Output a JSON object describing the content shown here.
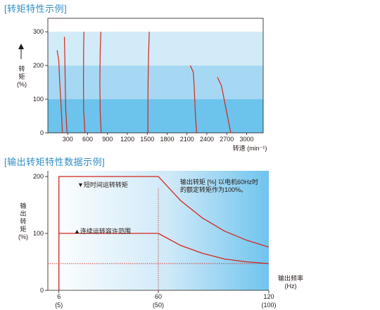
{
  "chart_data": [
    {
      "type": "line",
      "title": "[转矩特性示例]",
      "ylabel_lines": [
        "转",
        "矩",
        "(%)"
      ],
      "xlabel": "转速 (min⁻¹)",
      "xlim": [
        0,
        3250
      ],
      "ylim": [
        0,
        340
      ],
      "xticks": [
        300,
        600,
        900,
        1200,
        1500,
        1800,
        2100,
        2400,
        2700,
        3000
      ],
      "xtick_labels": [
        "300",
        "600",
        "900",
        "1200",
        "1500",
        "1800",
        "2100",
        "2400",
        "2700",
        "3000"
      ],
      "yticks": [
        0,
        100,
        200,
        300
      ],
      "ytick_labels": [
        "0",
        "100",
        "200",
        "300"
      ],
      "bands": [
        {
          "from": 0,
          "to": 100,
          "color": "#6cc3ec"
        },
        {
          "from": 100,
          "to": 200,
          "color": "#a6d8f3"
        },
        {
          "from": 200,
          "to": 300,
          "color": "#d2ebf8"
        }
      ],
      "series_color": "#d3261b",
      "series": [
        {
          "points": [
            [
              140,
              245
            ],
            [
              165,
              215
            ],
            [
              180,
              150
            ],
            [
              200,
              80
            ],
            [
              220,
              0
            ]
          ]
        },
        {
          "points": [
            [
              250,
              285
            ],
            [
              255,
              240
            ],
            [
              262,
              150
            ],
            [
              270,
              70
            ],
            [
              290,
              0
            ]
          ]
        },
        {
          "points": [
            [
              545,
              300
            ],
            [
              540,
              250
            ],
            [
              537,
              150
            ],
            [
              540,
              70
            ],
            [
              560,
              0
            ]
          ]
        },
        {
          "points": [
            [
              800,
              300
            ],
            [
              790,
              240
            ],
            [
              785,
              150
            ],
            [
              790,
              60
            ],
            [
              805,
              0
            ]
          ]
        },
        {
          "points": [
            [
              1530,
              300
            ],
            [
              1520,
              230
            ],
            [
              1512,
              150
            ],
            [
              1510,
              70
            ],
            [
              1510,
              0
            ]
          ]
        },
        {
          "points": [
            [
              2150,
              200
            ],
            [
              2195,
              180
            ],
            [
              2210,
              130
            ],
            [
              2225,
              60
            ],
            [
              2245,
              0
            ]
          ]
        },
        {
          "points": [
            [
              2560,
              165
            ],
            [
              2620,
              140
            ],
            [
              2670,
              90
            ],
            [
              2720,
              40
            ],
            [
              2760,
              0
            ]
          ]
        }
      ]
    },
    {
      "type": "line",
      "title": "[输出转矩特性数据示例]",
      "ylabel_lines": [
        "输",
        "出",
        "转",
        "矩",
        "(%)"
      ],
      "xlabel_lines": [
        "输出频率",
        "(Hz)"
      ],
      "xlim": [
        0,
        120
      ],
      "ylim": [
        0,
        210
      ],
      "xticks": [
        6,
        60,
        120
      ],
      "xtick_labels": [
        "6",
        "60",
        "120"
      ],
      "xtick_sublabels": [
        "(5)",
        "(50)",
        "(100)"
      ],
      "yticks": [
        0,
        100,
        200
      ],
      "ytick_labels": [
        "0",
        "100",
        "200"
      ],
      "note_lines": [
        "输出转矩 [%] 以电机60Hz时",
        "的额定转矩作为100%。"
      ],
      "series_color": "#d3261b",
      "series": [
        {
          "name": "▼短时间运转转矩",
          "points": [
            [
              6,
              0
            ],
            [
              6,
              200
            ],
            [
              60,
              200
            ],
            [
              72,
              158
            ],
            [
              84,
              127
            ],
            [
              96,
              104
            ],
            [
              108,
              88
            ],
            [
              120,
              76
            ]
          ]
        },
        {
          "name": "▲连续运转容许范围",
          "points": [
            [
              60,
              100
            ],
            [
              72,
              79
            ],
            [
              84,
              65
            ],
            [
              96,
              55
            ],
            [
              108,
              50
            ],
            [
              120,
              47
            ]
          ]
        },
        {
          "points": [
            [
              6,
              100
            ],
            [
              60,
              100
            ]
          ]
        }
      ],
      "dotted_lines": [
        {
          "axis": "y",
          "value": 47
        },
        {
          "axis": "x",
          "value": 6
        },
        {
          "axis": "x",
          "value": 60
        }
      ]
    }
  ]
}
